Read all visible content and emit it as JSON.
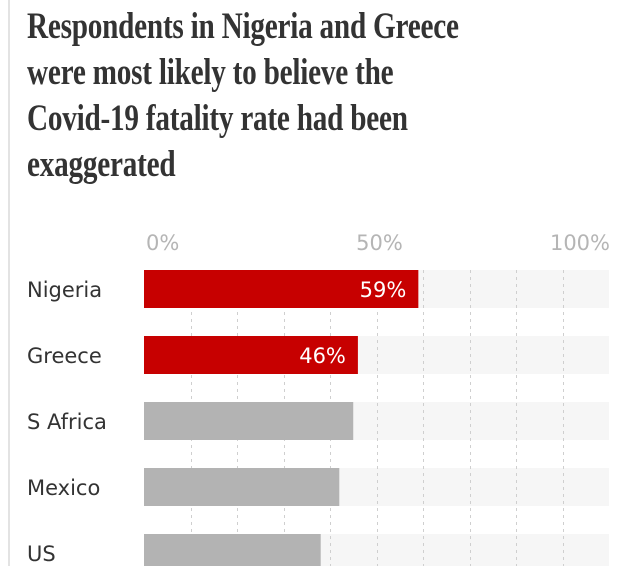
{
  "chart_data": {
    "type": "bar",
    "orientation": "horizontal",
    "title": "Respondents in Nigeria and Greece were most likely to believe the Covid-19 fatality rate had been exaggerated",
    "title_lines": [
      "Respondents in Nigeria and Greece",
      "were most likely to believe the",
      "Covid-19 fatality rate had been",
      "exaggerated"
    ],
    "categories": [
      "Nigeria",
      "Greece",
      "S Africa",
      "Mexico",
      "US"
    ],
    "values": [
      59,
      46,
      45,
      42,
      38
    ],
    "value_labels": [
      "59%",
      "46%",
      null,
      null,
      null
    ],
    "highlighted": [
      true,
      true,
      false,
      false,
      false
    ],
    "xlim": [
      0,
      100
    ],
    "x_ticks": [
      {
        "value": 0,
        "label": "0%"
      },
      {
        "value": 50,
        "label": "50%"
      },
      {
        "value": 100,
        "label": "100%"
      }
    ],
    "grid_step": 10,
    "grid": true,
    "xlabel": "",
    "ylabel": "",
    "colors": {
      "highlight": "#c70000",
      "default": "#b3b3b3",
      "track": "#f6f6f6",
      "grid": "#cfcfcf"
    }
  }
}
